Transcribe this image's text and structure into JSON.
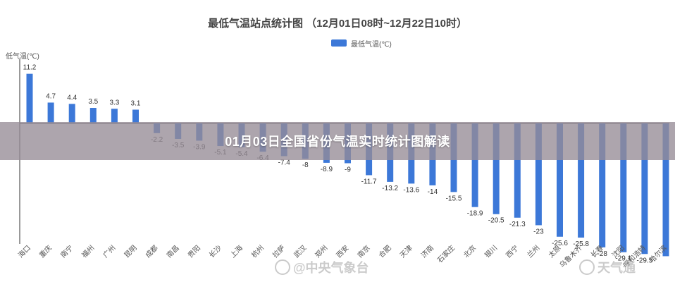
{
  "banner": {
    "text": "01月03日全国省份气温实时统计图解读"
  },
  "watermarks": {
    "left": "@中央气象台",
    "right": "天气通"
  },
  "colors": {
    "bar": "#3c78d8",
    "axis": "#333333",
    "banner": "#968c96"
  },
  "chart_data": {
    "type": "bar",
    "title": "最低气温站点统计图 （12月01日08时~12月22日10时）",
    "ylabel": "低气温(℃)",
    "legend": "最低气温(℃)",
    "legend_position": "top-center",
    "grid": false,
    "ylim": [
      -31,
      12
    ],
    "series": [
      {
        "name": "最低气温(℃)",
        "categories": [
          "海口",
          "重庆",
          "南宁",
          "福州",
          "广州",
          "昆明",
          "成都",
          "南昌",
          "贵阳",
          "长沙",
          "上海",
          "杭州",
          "拉萨",
          "武汉",
          "郑州",
          "西安",
          "南京",
          "合肥",
          "天津",
          "济南",
          "石家庄",
          "北京",
          "银川",
          "西宁",
          "兰州",
          "太原",
          "乌鲁木齐",
          "长春",
          "沈阳",
          "呼和浩特",
          "哈尔滨"
        ],
        "values": [
          11.2,
          4.7,
          4.4,
          3.5,
          3.3,
          3.1,
          -2.2,
          -3.5,
          -3.9,
          -5.1,
          -5.4,
          -6.4,
          -7.4,
          -8,
          -8.9,
          -9,
          -11.7,
          -13.2,
          -13.6,
          -14,
          -15.5,
          -18.9,
          -20.5,
          -21.3,
          -23,
          -25.6,
          -25.8,
          -28,
          -29.1,
          -29.5,
          -30
        ],
        "labels": [
          "11.2",
          "4.7",
          "4.4",
          "3.5",
          "3.3",
          "3.1",
          "-2.2",
          "-3.5",
          "-3.9",
          "-5.1",
          "-5.4",
          "-6.4",
          "-7.4",
          "-8",
          "-8.9",
          "-9",
          "-11.7",
          "-13.2",
          "-13.6",
          "-14",
          "-15.5",
          "-18.9",
          "-20.5",
          "-21.3",
          "-23",
          "-25.6",
          "-25.8",
          "-28",
          "-29.1",
          "-29.5",
          ""
        ]
      }
    ]
  }
}
